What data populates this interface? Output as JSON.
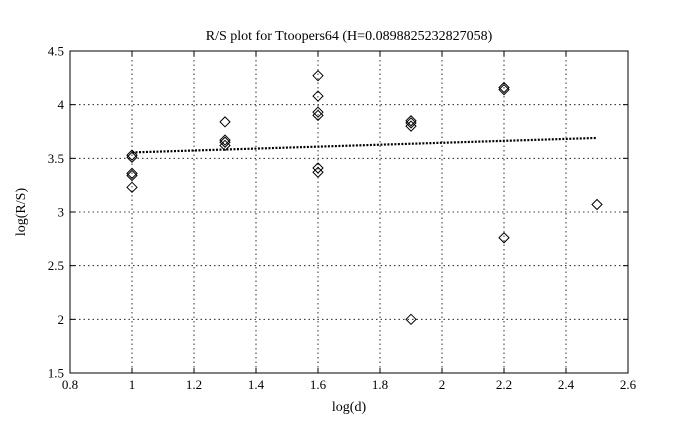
{
  "chart_data": {
    "type": "scatter",
    "title": "R/S plot for Ttoopers64 (H=0.0898825232827058)",
    "xlabel": "log(d)",
    "ylabel": "log(R/S)",
    "xlim": [
      0.8,
      2.6
    ],
    "ylim": [
      1.5,
      4.5
    ],
    "xticks": [
      0.8,
      1,
      1.2,
      1.4,
      1.6,
      1.8,
      2,
      2.2,
      2.4,
      2.6
    ],
    "xtick_labels": [
      "0.8",
      "1",
      "1.2",
      "1.4",
      "1.6",
      "1.8",
      "2",
      "2.2",
      "2.4",
      "2.6"
    ],
    "yticks": [
      1.5,
      2,
      2.5,
      3,
      3.5,
      4,
      4.5
    ],
    "ytick_labels": [
      "1.5",
      "2",
      "2.5",
      "3",
      "3.5",
      "4",
      "4.5"
    ],
    "grid": true,
    "marker": "diamond",
    "series": [
      {
        "x": [
          1.0,
          1.0,
          1.0,
          1.0,
          1.0,
          1.3,
          1.3,
          1.3,
          1.3,
          1.6,
          1.6,
          1.6,
          1.6,
          1.6,
          1.6,
          1.9,
          1.9,
          1.9,
          1.9,
          2.2,
          2.2,
          2.2,
          2.5
        ],
        "y": [
          3.53,
          3.51,
          3.36,
          3.34,
          3.23,
          3.84,
          3.67,
          3.65,
          3.62,
          4.27,
          4.08,
          3.93,
          3.9,
          3.41,
          3.37,
          3.85,
          3.83,
          3.8,
          2.0,
          4.16,
          4.14,
          2.76,
          3.07
        ]
      }
    ],
    "fit_line": {
      "x": [
        1.0,
        2.5
      ],
      "y": [
        3.555,
        3.69
      ]
    }
  }
}
